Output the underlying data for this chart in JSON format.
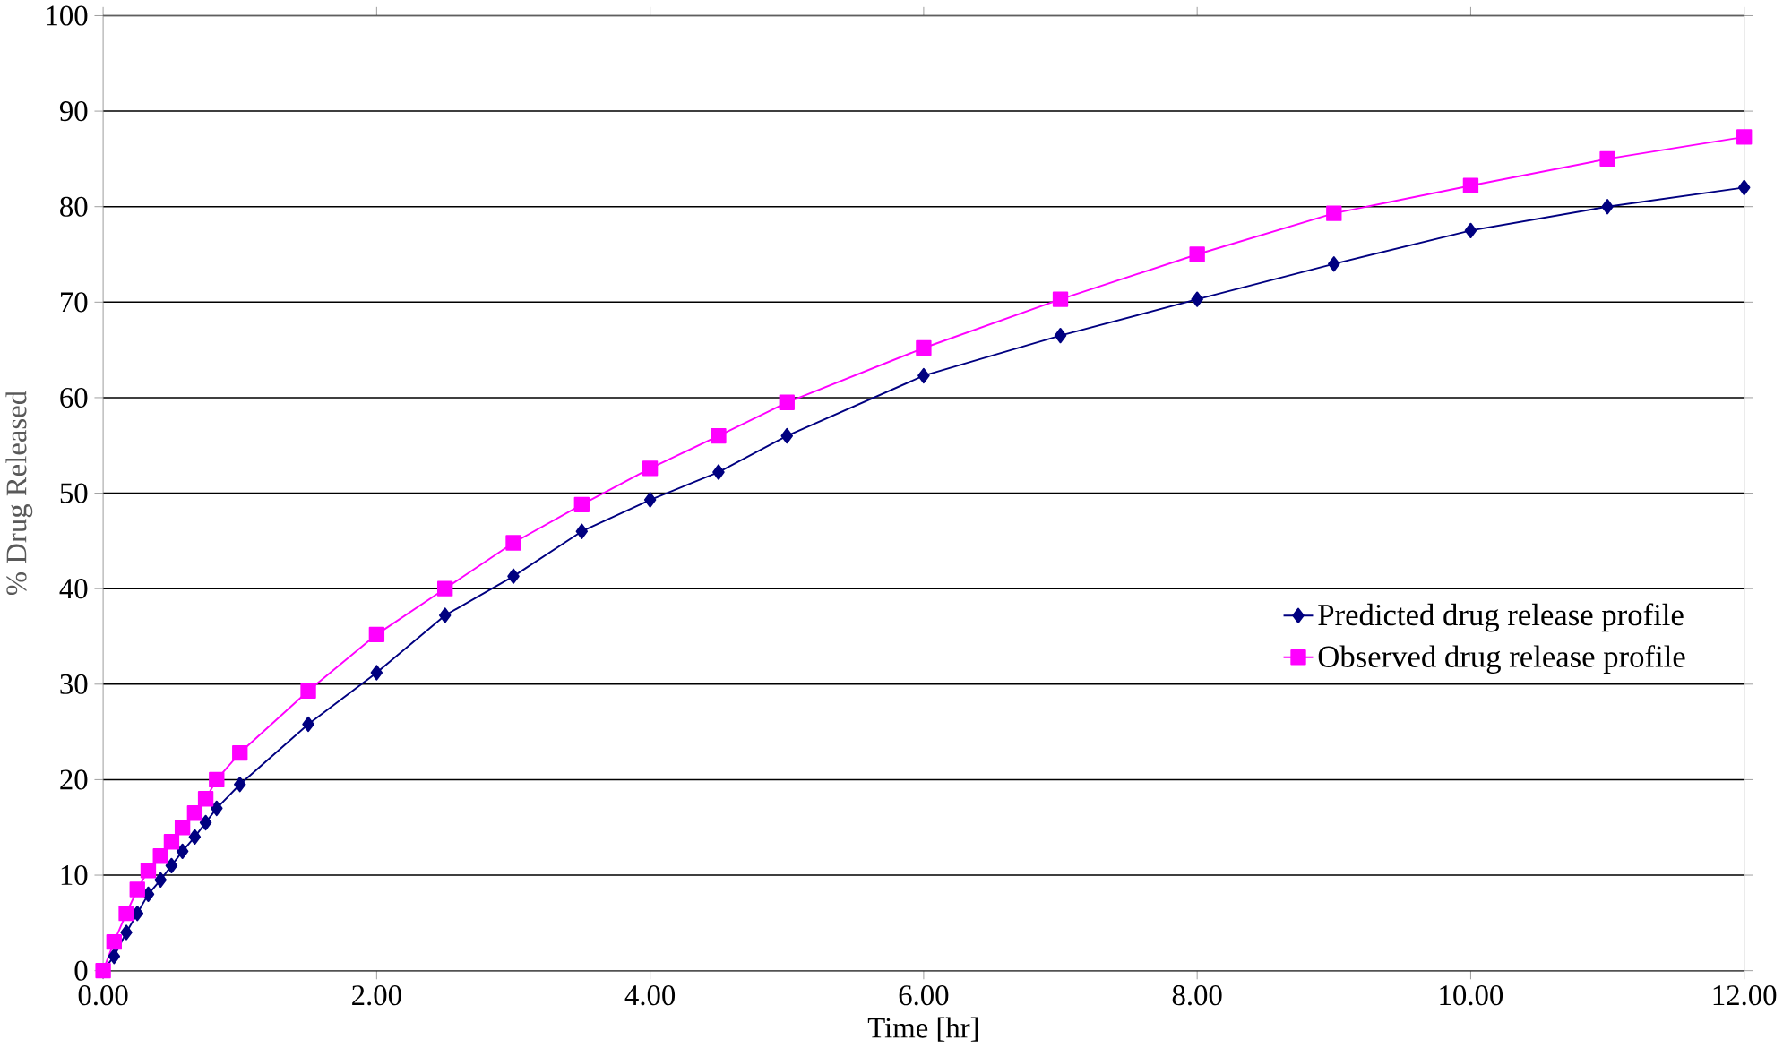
{
  "chart_data": {
    "type": "line",
    "xlabel": "Time [hr]",
    "ylabel": "% Drug Released",
    "xlim": [
      0,
      12
    ],
    "ylim": [
      0,
      100
    ],
    "xticks": [
      {
        "value": 0,
        "label": "0.00"
      },
      {
        "value": 2,
        "label": "2.00"
      },
      {
        "value": 4,
        "label": "4.00"
      },
      {
        "value": 6,
        "label": "6.00"
      },
      {
        "value": 8,
        "label": "8.00"
      },
      {
        "value": 10,
        "label": "10.00"
      },
      {
        "value": 12,
        "label": "12.00"
      }
    ],
    "yticks": [
      0,
      10,
      20,
      30,
      40,
      50,
      60,
      70,
      80,
      90,
      100
    ],
    "grid": "y",
    "legend": "right",
    "x": [
      0,
      0.08,
      0.17,
      0.25,
      0.33,
      0.42,
      0.5,
      0.58,
      0.67,
      0.75,
      0.83,
      1,
      1.5,
      2,
      2.5,
      3,
      3.5,
      4,
      4.5,
      5,
      6,
      7,
      8,
      9,
      10,
      11,
      12
    ],
    "series": [
      {
        "name": "Predicted drug release profile",
        "color": "#000080",
        "marker": "diamond",
        "values": [
          0,
          1.5,
          4,
          6,
          8,
          9.5,
          11,
          12.5,
          14,
          15.5,
          17,
          19.5,
          25.8,
          31.2,
          37.2,
          41.3,
          46,
          49.3,
          52.2,
          56,
          62.3,
          66.5,
          70.3,
          74,
          77.5,
          80,
          82
        ]
      },
      {
        "name": "Observed drug release profile",
        "color": "#ff00ff",
        "marker": "square",
        "values": [
          0,
          3,
          6,
          8.5,
          10.5,
          12,
          13.5,
          15,
          16.5,
          18,
          20,
          22.8,
          29.3,
          35.2,
          40,
          44.8,
          48.8,
          52.6,
          56,
          59.5,
          65.2,
          70.3,
          75,
          79.3,
          82.2,
          85,
          87.3
        ]
      }
    ]
  }
}
